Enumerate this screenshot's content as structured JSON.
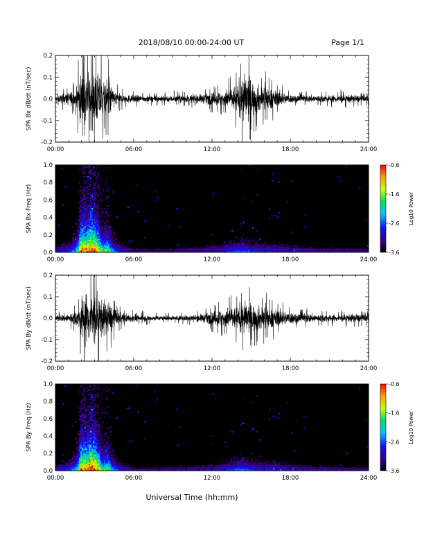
{
  "header": {
    "title": "2018/08/10  00:00-24:00 UT",
    "page": "Page 1/1"
  },
  "xlabel": "Universal Time (hh:mm)",
  "chart_data": [
    {
      "type": "line",
      "panel": "bx-waveform",
      "ylabel": "SPA Bx dB/dt (nT/sec)",
      "xlim": [
        0,
        24
      ],
      "ylim": [
        -0.2,
        0.2
      ],
      "x_ticks": [
        "00:00",
        "06:00",
        "12:00",
        "18:00",
        "24:00"
      ],
      "y_ticks": [
        "-0.2",
        "-0.1",
        "0.0",
        "0.1",
        "0.2"
      ],
      "amplitude_envelope": {
        "x": [
          0,
          0.3,
          0.8,
          1.2,
          1.6,
          1.9,
          2.1,
          2.5,
          3.0,
          3.5,
          3.8,
          4.1,
          4.3,
          4.6,
          5.0,
          6,
          7,
          8,
          9,
          10,
          11,
          11.5,
          12,
          12.5,
          13,
          13.5,
          14,
          14.4,
          14.8,
          15.2,
          15.8,
          16.2,
          16.8,
          17.5,
          18,
          19,
          20,
          21,
          22,
          23,
          24
        ],
        "y": [
          0.02,
          0.03,
          0.05,
          0.06,
          0.08,
          0.2,
          0.22,
          0.22,
          0.22,
          0.2,
          0.12,
          0.2,
          0.1,
          0.06,
          0.04,
          0.03,
          0.025,
          0.025,
          0.028,
          0.03,
          0.035,
          0.04,
          0.05,
          0.06,
          0.07,
          0.09,
          0.13,
          0.2,
          0.2,
          0.13,
          0.1,
          0.1,
          0.07,
          0.05,
          0.035,
          0.03,
          0.03,
          0.03,
          0.035,
          0.03,
          0.025
        ]
      }
    },
    {
      "type": "heatmap",
      "panel": "bx-spectrogram",
      "ylabel": "SPA Bx Freq (Hz)",
      "xlim": [
        0,
        24
      ],
      "ylim": [
        0,
        1.0
      ],
      "x_ticks": [
        "00:00",
        "06:00",
        "12:00",
        "18:00",
        "24:00"
      ],
      "y_ticks": [
        "0.0",
        "0.2",
        "0.4",
        "0.6",
        "0.8",
        "1.0"
      ],
      "colorbar": {
        "label": "Log10 Power",
        "ticks": [
          "-0.6",
          "-1.6",
          "-2.6",
          "-3.6"
        ],
        "range": [
          -3.6,
          -0.6
        ]
      },
      "activity_profile": {
        "x": [
          0,
          1,
          1.6,
          2,
          2.4,
          2.7,
          3,
          3.3,
          3.6,
          4,
          4.3,
          5,
          6,
          8,
          10,
          12,
          13,
          14,
          14.5,
          15,
          16,
          17,
          18,
          19,
          20,
          22,
          24
        ],
        "y": [
          0.25,
          0.35,
          0.5,
          0.95,
          0.9,
          1.0,
          0.95,
          0.85,
          0.6,
          0.7,
          0.5,
          0.3,
          0.15,
          0.15,
          0.18,
          0.25,
          0.3,
          0.4,
          0.4,
          0.35,
          0.3,
          0.3,
          0.25,
          0.22,
          0.2,
          0.18,
          0.15
        ]
      }
    },
    {
      "type": "line",
      "panel": "by-waveform",
      "ylabel": "SPA By dB/dt (nT/sec)",
      "xlim": [
        0,
        24
      ],
      "ylim": [
        -0.2,
        0.2
      ],
      "x_ticks": [
        "00:00",
        "06:00",
        "12:00",
        "18:00",
        "24:00"
      ],
      "y_ticks": [
        "-0.2",
        "-0.1",
        "0.0",
        "0.1",
        "0.2"
      ],
      "amplitude_envelope": {
        "x": [
          0,
          0.5,
          1.0,
          1.5,
          1.8,
          2.0,
          2.4,
          2.8,
          3.2,
          3.6,
          4.0,
          4.3,
          4.7,
          5.2,
          6,
          7,
          8,
          9,
          10,
          11,
          11.5,
          12,
          12.5,
          13,
          13.5,
          14,
          14.5,
          15,
          15.5,
          16,
          16.5,
          17,
          17.5,
          18,
          19,
          20,
          21,
          22,
          23,
          24
        ],
        "y": [
          0.02,
          0.03,
          0.04,
          0.06,
          0.08,
          0.2,
          0.22,
          0.22,
          0.22,
          0.15,
          0.13,
          0.12,
          0.06,
          0.04,
          0.03,
          0.025,
          0.02,
          0.02,
          0.025,
          0.03,
          0.04,
          0.05,
          0.07,
          0.08,
          0.09,
          0.1,
          0.14,
          0.12,
          0.1,
          0.1,
          0.08,
          0.07,
          0.06,
          0.05,
          0.04,
          0.035,
          0.03,
          0.03,
          0.035,
          0.03
        ]
      }
    },
    {
      "type": "heatmap",
      "panel": "by-spectrogram",
      "ylabel": "SPA By Freq (Hz)",
      "xlim": [
        0,
        24
      ],
      "ylim": [
        0,
        1.0
      ],
      "x_ticks": [
        "00:00",
        "06:00",
        "12:00",
        "18:00",
        "24:00"
      ],
      "y_ticks": [
        "0.0",
        "0.2",
        "0.4",
        "0.6",
        "0.8",
        "1.0"
      ],
      "colorbar": {
        "label": "Log10 Power",
        "ticks": [
          "-0.6",
          "-1.6",
          "-2.6",
          "-3.6"
        ],
        "range": [
          -3.6,
          -0.6
        ]
      },
      "activity_profile": {
        "x": [
          0,
          1,
          1.6,
          2,
          2.4,
          2.7,
          3,
          3.3,
          3.6,
          4,
          4.3,
          5,
          6,
          8,
          10,
          12,
          13,
          14,
          14.5,
          15,
          16,
          17,
          18,
          19,
          20,
          22,
          24
        ],
        "y": [
          0.25,
          0.35,
          0.5,
          0.95,
          0.9,
          1.0,
          0.95,
          0.85,
          0.6,
          0.7,
          0.5,
          0.3,
          0.15,
          0.15,
          0.18,
          0.25,
          0.3,
          0.4,
          0.4,
          0.35,
          0.3,
          0.3,
          0.25,
          0.22,
          0.2,
          0.18,
          0.15
        ]
      }
    }
  ]
}
